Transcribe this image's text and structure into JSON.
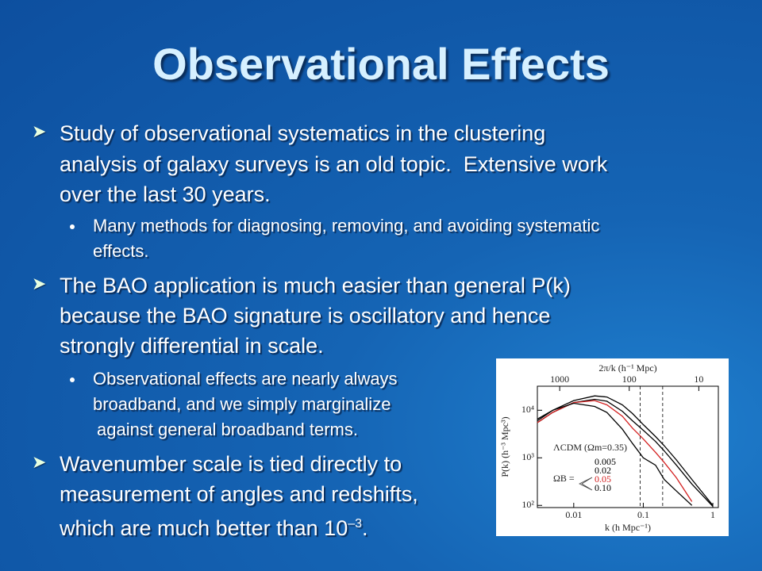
{
  "slide": {
    "title": "Observational Effects",
    "bullets": [
      {
        "lines": [
          "Study of observational systematics in the clustering",
          "analysis of galaxy surveys is an old topic.  Extensive work",
          "over the last 30 years."
        ],
        "sub": [
          {
            "lines": [
              "Many methods for diagnosing, removing, and avoiding systematic",
              "effects."
            ]
          }
        ]
      },
      {
        "lines": [
          "The BAO application is much easier than general P(k)",
          "because the BAO signature is oscillatory and hence",
          "strongly differential in scale."
        ],
        "sub": [
          {
            "lines": [
              "Observational effects are nearly always",
              "broadband, and we simply marginalize",
              "against general broadband terms."
            ]
          }
        ]
      },
      {
        "lines": [
          "Wavenumber scale is tied directly to",
          "measurement of angles and redshifts,",
          "which are much better than 10"
        ],
        "sup": "–3",
        "tail": "."
      }
    ]
  },
  "chart_data": {
    "type": "line",
    "x_label": "k (h Mpc⁻¹)",
    "y_label": "P(k) (h⁻³ Mpc³)",
    "top_label": "2π/k (h⁻¹ Mpc)",
    "model_label": "ΛCDM (Ωm=0.35)",
    "legend_title": "ΩB =",
    "log_x": true,
    "log_y": true,
    "xlim": [
      0.003,
      1.2
    ],
    "ylim": [
      90,
      32000
    ],
    "xticks": [
      0.01,
      0.1,
      1
    ],
    "yticks": [
      {
        "value": 100,
        "label": "10²"
      },
      {
        "value": 1000,
        "label": "10³"
      },
      {
        "value": 10000,
        "label": "10⁴"
      }
    ],
    "top_ticks": [
      1000,
      100,
      10
    ],
    "vlines": [
      0.09,
      0.19
    ],
    "x": [
      0.003,
      0.005,
      0.01,
      0.02,
      0.03,
      0.05,
      0.07,
      0.1,
      0.15,
      0.2,
      0.3,
      0.5,
      1
    ],
    "series": [
      {
        "name": "0.005",
        "color": "#000000",
        "values": [
          6000,
          10000,
          16000,
          20000,
          19000,
          13000,
          8500,
          5000,
          2800,
          1800,
          900,
          350,
          100
        ]
      },
      {
        "name": "0.02",
        "color": "#000000",
        "values": [
          5500,
          9000,
          14500,
          17000,
          15500,
          9500,
          6000,
          3800,
          2200,
          1400,
          700,
          280,
          95
        ]
      },
      {
        "name": "0.05",
        "color": "#d42020",
        "values": [
          5500,
          9000,
          14500,
          16000,
          13000,
          7500,
          4200,
          2500,
          1300,
          800,
          380,
          120,
          null
        ]
      },
      {
        "name": "0.10",
        "color": "#000000",
        "values": [
          6500,
          10000,
          14000,
          12000,
          9000,
          4000,
          2000,
          1000,
          700,
          350,
          200,
          100,
          null
        ]
      }
    ]
  }
}
